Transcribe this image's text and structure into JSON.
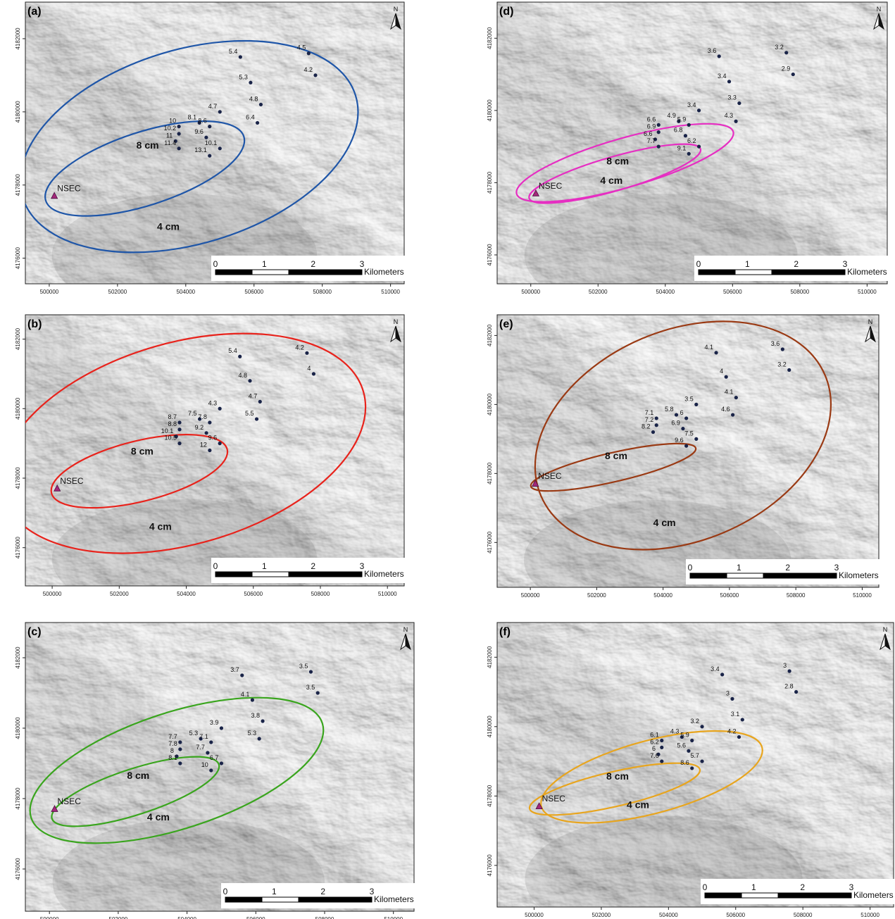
{
  "map": {
    "x_ticks": [
      "500000",
      "502000",
      "504000",
      "506000",
      "508000",
      "510000"
    ],
    "y_ticks": [
      "4176000",
      "4178000",
      "4180000",
      "4182000"
    ],
    "vent_label": "NSEC",
    "north_label": "N",
    "scale_numbers": [
      "0",
      "1",
      "2",
      "3"
    ],
    "scale_unit": "Kilometers",
    "isopach_labels": {
      "inner": "8 cm",
      "outer": "4 cm"
    },
    "colors": {
      "a": "#1f56a8",
      "b": "#e8231c",
      "c": "#3aa51e",
      "d": "#e62ec2",
      "e": "#9a3a14",
      "f": "#e8a51e",
      "site_marker": "#1a2448",
      "vent_marker": "#a4287a"
    },
    "panels": [
      {
        "id": "a",
        "letter": "(a)",
        "sites": [
          {
            "v": "5.4",
            "e": 505600,
            "n": 4181500
          },
          {
            "v": "4.5",
            "e": 507600,
            "n": 4181600
          },
          {
            "v": "4.2",
            "e": 507800,
            "n": 4181000
          },
          {
            "v": "5.3",
            "e": 505900,
            "n": 4180800
          },
          {
            "v": "4.8",
            "e": 506200,
            "n": 4180200
          },
          {
            "v": "4.7",
            "e": 505000,
            "n": 4180000
          },
          {
            "v": "6.4",
            "e": 506100,
            "n": 4179700
          },
          {
            "v": "8.1",
            "e": 504400,
            "n": 4179700
          },
          {
            "v": "10",
            "e": 503800,
            "n": 4179600
          },
          {
            "v": "8.6",
            "e": 504700,
            "n": 4179600
          },
          {
            "v": "10.2",
            "e": 503800,
            "n": 4179400
          },
          {
            "v": "9.6",
            "e": 504600,
            "n": 4179300
          },
          {
            "v": "11",
            "e": 503700,
            "n": 4179200
          },
          {
            "v": "11.4",
            "e": 503800,
            "n": 4179000
          },
          {
            "v": "10.1",
            "e": 505000,
            "n": 4179000
          },
          {
            "v": "13.1",
            "e": 504700,
            "n": 4178800
          }
        ]
      },
      {
        "id": "d",
        "letter": "(d)",
        "sites": [
          {
            "v": "3.6",
            "e": 505600,
            "n": 4181500
          },
          {
            "v": "3.2",
            "e": 507600,
            "n": 4181600
          },
          {
            "v": "2.9",
            "e": 507800,
            "n": 4181000
          },
          {
            "v": "3.4",
            "e": 505900,
            "n": 4180800
          },
          {
            "v": "3.3",
            "e": 506200,
            "n": 4180200
          },
          {
            "v": "3.4",
            "e": 505000,
            "n": 4180000
          },
          {
            "v": "4.3",
            "e": 506100,
            "n": 4179700
          },
          {
            "v": "4.9",
            "e": 504400,
            "n": 4179700
          },
          {
            "v": "5.9",
            "e": 504700,
            "n": 4179600
          },
          {
            "v": "6.6",
            "e": 503800,
            "n": 4179600
          },
          {
            "v": "6.9",
            "e": 503800,
            "n": 4179400
          },
          {
            "v": "6.8",
            "e": 504600,
            "n": 4179300
          },
          {
            "v": "6.6",
            "e": 503700,
            "n": 4179200
          },
          {
            "v": "6.2",
            "e": 505000,
            "n": 4179000
          },
          {
            "v": "7.7",
            "e": 503800,
            "n": 4179000
          },
          {
            "v": "9.1",
            "e": 504700,
            "n": 4178800
          }
        ]
      },
      {
        "id": "b",
        "letter": "(b)",
        "sites": [
          {
            "v": "5.4",
            "e": 505600,
            "n": 4181500
          },
          {
            "v": "4.2",
            "e": 507600,
            "n": 4181600
          },
          {
            "v": "4",
            "e": 507800,
            "n": 4181000
          },
          {
            "v": "4.8",
            "e": 505900,
            "n": 4180800
          },
          {
            "v": "4.7",
            "e": 506200,
            "n": 4180200
          },
          {
            "v": "4.3",
            "e": 505000,
            "n": 4180000
          },
          {
            "v": "5.5",
            "e": 506100,
            "n": 4179700
          },
          {
            "v": "7.5",
            "e": 504400,
            "n": 4179700
          },
          {
            "v": "7.8",
            "e": 504700,
            "n": 4179600
          },
          {
            "v": "8.7",
            "e": 503800,
            "n": 4179600
          },
          {
            "v": "8.8",
            "e": 503800,
            "n": 4179400
          },
          {
            "v": "9.2",
            "e": 504600,
            "n": 4179300
          },
          {
            "v": "10.1",
            "e": 503700,
            "n": 4179200
          },
          {
            "v": "9.6",
            "e": 505000,
            "n": 4179000
          },
          {
            "v": "10.5",
            "e": 503800,
            "n": 4179000
          },
          {
            "v": "12",
            "e": 504700,
            "n": 4178800
          }
        ]
      },
      {
        "id": "e",
        "letter": "(e)",
        "sites": [
          {
            "v": "4.1",
            "e": 505600,
            "n": 4181500
          },
          {
            "v": "3.6",
            "e": 507600,
            "n": 4181600
          },
          {
            "v": "3.2",
            "e": 507800,
            "n": 4181000
          },
          {
            "v": "4",
            "e": 505900,
            "n": 4180800
          },
          {
            "v": "4.1",
            "e": 506200,
            "n": 4180200
          },
          {
            "v": "3.5",
            "e": 505000,
            "n": 4180000
          },
          {
            "v": "4.6",
            "e": 506100,
            "n": 4179700
          },
          {
            "v": "5.8",
            "e": 504400,
            "n": 4179700
          },
          {
            "v": "6",
            "e": 504700,
            "n": 4179600
          },
          {
            "v": "7.1",
            "e": 503800,
            "n": 4179600
          },
          {
            "v": "7.2",
            "e": 503800,
            "n": 4179400
          },
          {
            "v": "6.9",
            "e": 504600,
            "n": 4179300
          },
          {
            "v": "8.2",
            "e": 503700,
            "n": 4179200
          },
          {
            "v": "7.5",
            "e": 505000,
            "n": 4179000
          },
          {
            "v": "9.6",
            "e": 504700,
            "n": 4178800
          }
        ]
      },
      {
        "id": "c",
        "letter": "(c)",
        "sites": [
          {
            "v": "3.7",
            "e": 505600,
            "n": 4181500
          },
          {
            "v": "3.5",
            "e": 507600,
            "n": 4181600
          },
          {
            "v": "3.5",
            "e": 507800,
            "n": 4181000
          },
          {
            "v": "4.1",
            "e": 505900,
            "n": 4180800
          },
          {
            "v": "3.8",
            "e": 506200,
            "n": 4180200
          },
          {
            "v": "3.9",
            "e": 505000,
            "n": 4180000
          },
          {
            "v": "5.3",
            "e": 506100,
            "n": 4179700
          },
          {
            "v": "5.3",
            "e": 504400,
            "n": 4179700
          },
          {
            "v": "7.1",
            "e": 504700,
            "n": 4179600
          },
          {
            "v": "7.7",
            "e": 503800,
            "n": 4179600
          },
          {
            "v": "7.8",
            "e": 503800,
            "n": 4179400
          },
          {
            "v": "7.7",
            "e": 504600,
            "n": 4179300
          },
          {
            "v": "8",
            "e": 503700,
            "n": 4179200
          },
          {
            "v": "6.7",
            "e": 505000,
            "n": 4179000
          },
          {
            "v": "8.1",
            "e": 503800,
            "n": 4179000
          },
          {
            "v": "10",
            "e": 504700,
            "n": 4178800
          }
        ]
      },
      {
        "id": "f",
        "letter": "(f)",
        "sites": [
          {
            "v": "3.4",
            "e": 505600,
            "n": 4181500
          },
          {
            "v": "3",
            "e": 507600,
            "n": 4181600
          },
          {
            "v": "2.8",
            "e": 507800,
            "n": 4181000
          },
          {
            "v": "3",
            "e": 505900,
            "n": 4180800
          },
          {
            "v": "3.1",
            "e": 506200,
            "n": 4180200
          },
          {
            "v": "3.2",
            "e": 505000,
            "n": 4180000
          },
          {
            "v": "4.2",
            "e": 506100,
            "n": 4179700
          },
          {
            "v": "4.3",
            "e": 504400,
            "n": 4179700
          },
          {
            "v": "5.9",
            "e": 504700,
            "n": 4179600
          },
          {
            "v": "6.1",
            "e": 503800,
            "n": 4179600
          },
          {
            "v": "6.2",
            "e": 503800,
            "n": 4179400
          },
          {
            "v": "5.6",
            "e": 504600,
            "n": 4179300
          },
          {
            "v": "6",
            "e": 503700,
            "n": 4179200
          },
          {
            "v": "5.7",
            "e": 505000,
            "n": 4179000
          },
          {
            "v": "7.6",
            "e": 503800,
            "n": 4179000
          },
          {
            "v": "8.6",
            "e": 504700,
            "n": 4178800
          }
        ]
      }
    ]
  }
}
